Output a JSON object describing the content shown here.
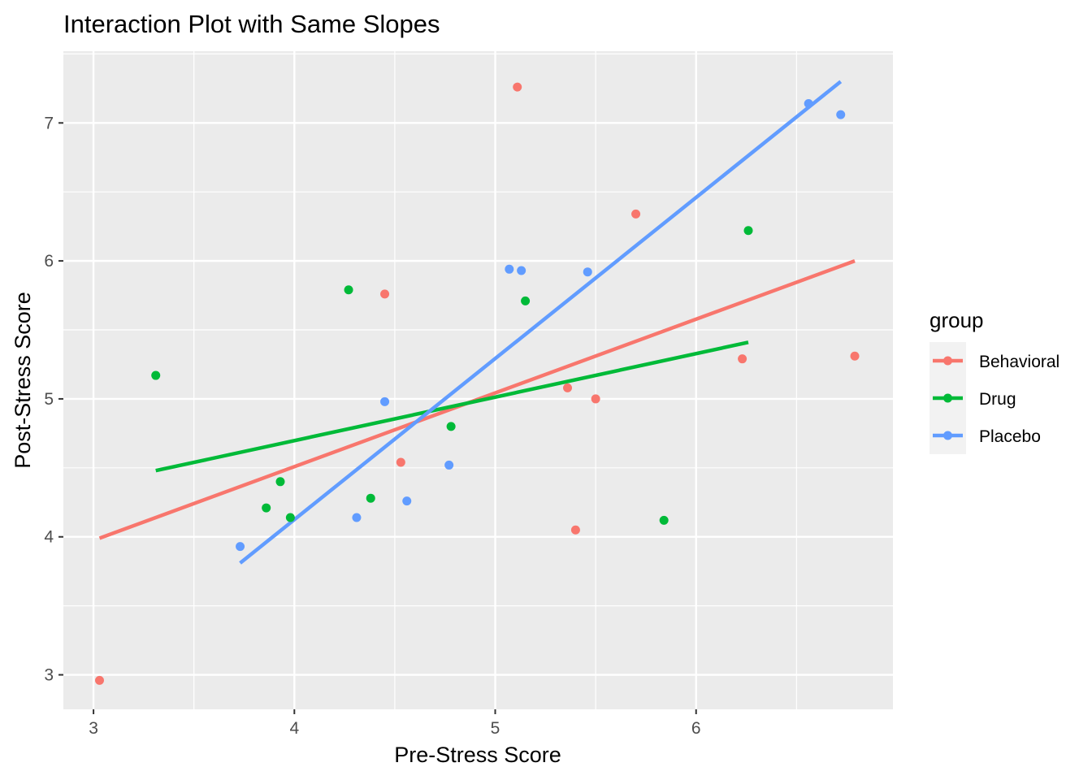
{
  "chart_data": {
    "type": "scatter",
    "title": "Interaction Plot with Same Slopes",
    "xlabel": "Pre-Stress Score",
    "ylabel": "Post-Stress Score",
    "xlim": [
      2.85,
      6.98
    ],
    "ylim": [
      2.75,
      7.52
    ],
    "x_ticks": [
      3,
      4,
      5,
      6
    ],
    "x_tick_labels": [
      "3",
      "4",
      "5",
      "6"
    ],
    "y_ticks": [
      3,
      4,
      5,
      6,
      7
    ],
    "y_tick_labels": [
      "3",
      "4",
      "5",
      "6",
      "7"
    ],
    "grid": true,
    "legend_title": "group",
    "legend_position": "right",
    "series": [
      {
        "name": "Behavioral",
        "color": "#F8766D",
        "points": [
          [
            3.03,
            2.96
          ],
          [
            4.45,
            5.76
          ],
          [
            4.53,
            4.54
          ],
          [
            5.11,
            7.26
          ],
          [
            5.36,
            5.08
          ],
          [
            5.4,
            4.05
          ],
          [
            5.5,
            5.0
          ],
          [
            5.7,
            6.34
          ],
          [
            6.23,
            5.29
          ],
          [
            6.79,
            5.31
          ]
        ],
        "fit": [
          [
            3.03,
            3.99
          ],
          [
            6.79,
            6.0
          ]
        ]
      },
      {
        "name": "Drug",
        "color": "#00BA38",
        "points": [
          [
            3.31,
            5.17
          ],
          [
            3.86,
            4.21
          ],
          [
            3.93,
            4.4
          ],
          [
            3.98,
            4.14
          ],
          [
            4.27,
            5.79
          ],
          [
            4.38,
            4.28
          ],
          [
            4.78,
            4.8
          ],
          [
            5.15,
            5.71
          ],
          [
            5.84,
            4.12
          ],
          [
            6.26,
            6.22
          ]
        ],
        "fit": [
          [
            3.31,
            4.48
          ],
          [
            6.26,
            5.41
          ]
        ]
      },
      {
        "name": "Placebo",
        "color": "#619CFF",
        "points": [
          [
            3.73,
            3.93
          ],
          [
            4.31,
            4.14
          ],
          [
            4.45,
            4.98
          ],
          [
            4.56,
            4.26
          ],
          [
            4.77,
            4.52
          ],
          [
            5.07,
            5.94
          ],
          [
            5.13,
            5.93
          ],
          [
            5.46,
            5.92
          ],
          [
            6.56,
            7.14
          ],
          [
            6.72,
            7.06
          ]
        ],
        "fit": [
          [
            3.73,
            3.81
          ],
          [
            6.72,
            7.3
          ]
        ]
      }
    ]
  }
}
